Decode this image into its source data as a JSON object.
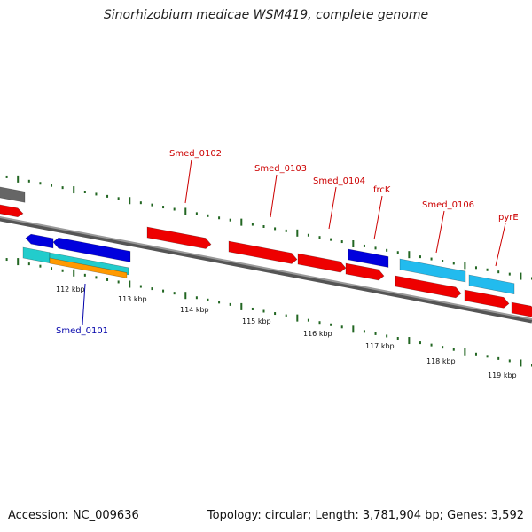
{
  "title": "Sinorhizobium medicae WSM419, complete genome",
  "footer": {
    "accession": "Accession: NC_009636",
    "info": "Topology: circular; Length: 3,781,904 bp; Genes: 3,592"
  },
  "colors": {
    "forward_gene": "#ee0000",
    "reverse_gene": "#0000dd",
    "light_blue_gene": "#22bbee",
    "cyan_gene": "#22cccc",
    "orange_gene": "#ff9900",
    "grey_gene": "#666666",
    "backbone": "#777777",
    "tick": "#226622",
    "forward_label": "#cc0000",
    "reverse_label": "#0000aa"
  },
  "ticks": [
    {
      "label": "112 kbp"
    },
    {
      "label": "113 kbp"
    },
    {
      "label": "114 kbp"
    },
    {
      "label": "115 kbp"
    },
    {
      "label": "116 kbp"
    },
    {
      "label": "117 kbp"
    },
    {
      "label": "118 kbp"
    },
    {
      "label": "119 kbp"
    }
  ],
  "gene_labels": [
    {
      "name": "Smed_0101",
      "strand": "reverse"
    },
    {
      "name": "Smed_0102",
      "strand": "forward"
    },
    {
      "name": "Smed_0103",
      "strand": "forward"
    },
    {
      "name": "Smed_0104",
      "strand": "forward"
    },
    {
      "name": "frcK",
      "strand": "forward"
    },
    {
      "name": "Smed_0106",
      "strand": "forward"
    },
    {
      "name": "pyrE",
      "strand": "forward"
    }
  ]
}
